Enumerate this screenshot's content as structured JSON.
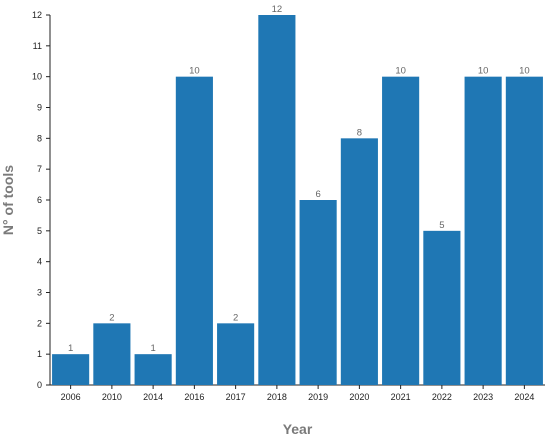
{
  "chart_data": {
    "type": "bar",
    "categories": [
      "2006",
      "2010",
      "2014",
      "2016",
      "2017",
      "2018",
      "2019",
      "2020",
      "2021",
      "2022",
      "2023",
      "2024"
    ],
    "values": [
      1,
      2,
      1,
      10,
      2,
      12,
      6,
      8,
      10,
      5,
      10,
      10
    ],
    "data_labels": [
      "1",
      "2",
      "1",
      "10",
      "2",
      "12",
      "6",
      "8",
      "10",
      "5",
      "10",
      "10"
    ],
    "xlabel": "Year",
    "ylabel": "N° of tools",
    "ylim": [
      0,
      12
    ],
    "yticks": [
      "0",
      "1",
      "2",
      "3",
      "4",
      "5",
      "6",
      "7",
      "8",
      "9",
      "10",
      "11",
      "12"
    ],
    "grid": false,
    "legend": "none",
    "bar_color": "#1f77b4"
  }
}
